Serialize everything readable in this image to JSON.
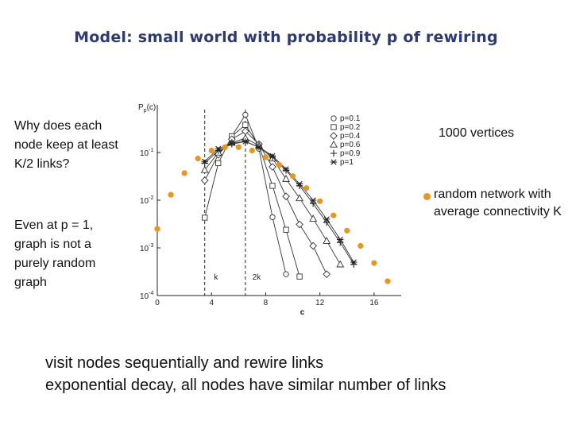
{
  "slide": {
    "title": "Model: small world with probability p of rewiring",
    "question": "Why does each node keep at least K/2 links?",
    "note": "Even at p = 1, graph is not a purely random graph",
    "vertices": "1000 vertices",
    "random_network": "random network with average connectivity K",
    "line1": "visit nodes sequentially and rewire links",
    "line2": "exponential decay, all nodes have similar number of links"
  },
  "colors": {
    "title": "#2e3a74",
    "random_points": "#e8961e",
    "curves": "#333333"
  },
  "chart_data": {
    "type": "line",
    "title": "",
    "ylabel": "Pp(c)",
    "xlabel": "c",
    "xlim": [
      0,
      18
    ],
    "xticks": [
      0,
      4,
      8,
      12,
      16
    ],
    "ylim_log10": [
      -4,
      0
    ],
    "yticks": [
      {
        "label": "10^-1",
        "value": 0.1
      },
      {
        "label": "10^-2",
        "value": 0.01
      },
      {
        "label": "10^-3",
        "value": 0.001
      },
      {
        "label": "10^-4",
        "value": 0.0001
      }
    ],
    "ylog": true,
    "vertical_markers": [
      {
        "label": "k",
        "x": 3
      },
      {
        "label": "2k",
        "x": 6
      }
    ],
    "legend_position": "top-right",
    "series": [
      {
        "name": "p=0.1",
        "marker": "circle",
        "x": [
          5,
          6,
          7,
          8,
          9
        ],
        "y": [
          0.22,
          0.62,
          0.12,
          0.0044,
          0.00028
        ]
      },
      {
        "name": "p=0.2",
        "marker": "square",
        "x": [
          3,
          4,
          5,
          6,
          7,
          8,
          9,
          10
        ],
        "y": [
          0.0043,
          0.06,
          0.22,
          0.38,
          0.14,
          0.02,
          0.0024,
          0.00025
        ]
      },
      {
        "name": "p=0.4",
        "marker": "diamond",
        "x": [
          3,
          4,
          5,
          6,
          7,
          8,
          9,
          10,
          11,
          12
        ],
        "y": [
          0.026,
          0.09,
          0.19,
          0.28,
          0.15,
          0.05,
          0.012,
          0.0031,
          0.0011,
          0.00028
        ]
      },
      {
        "name": "p=0.6",
        "marker": "triangle",
        "x": [
          3,
          4,
          5,
          6,
          7,
          8,
          9,
          10,
          11,
          12,
          13
        ],
        "y": [
          0.043,
          0.1,
          0.16,
          0.2,
          0.14,
          0.075,
          0.028,
          0.011,
          0.0041,
          0.0014,
          0.00045
        ]
      },
      {
        "name": "p=0.9",
        "marker": "plus",
        "x": [
          3,
          4,
          5,
          6,
          7,
          8,
          9,
          10,
          11,
          12,
          13,
          14
        ],
        "y": [
          0.06,
          0.11,
          0.15,
          0.17,
          0.13,
          0.08,
          0.042,
          0.02,
          0.0085,
          0.0034,
          0.0013,
          0.00045
        ]
      },
      {
        "name": "p=1",
        "marker": "star",
        "x": [
          3,
          4,
          5,
          6,
          7,
          8,
          9,
          10,
          11,
          12,
          13,
          14
        ],
        "y": [
          0.065,
          0.12,
          0.16,
          0.17,
          0.13,
          0.085,
          0.045,
          0.022,
          0.01,
          0.004,
          0.0015,
          0.0005
        ]
      },
      {
        "name": "random network",
        "marker": "dot-orange",
        "x": [
          0,
          1,
          2,
          3,
          4,
          5,
          6,
          7,
          8,
          9,
          10,
          11,
          12,
          13,
          14,
          15,
          16,
          17
        ],
        "y": [
          0.0025,
          0.013,
          0.037,
          0.075,
          0.11,
          0.13,
          0.13,
          0.11,
          0.08,
          0.055,
          0.032,
          0.018,
          0.0095,
          0.0048,
          0.0023,
          0.0011,
          0.00048,
          0.0002
        ]
      }
    ]
  }
}
